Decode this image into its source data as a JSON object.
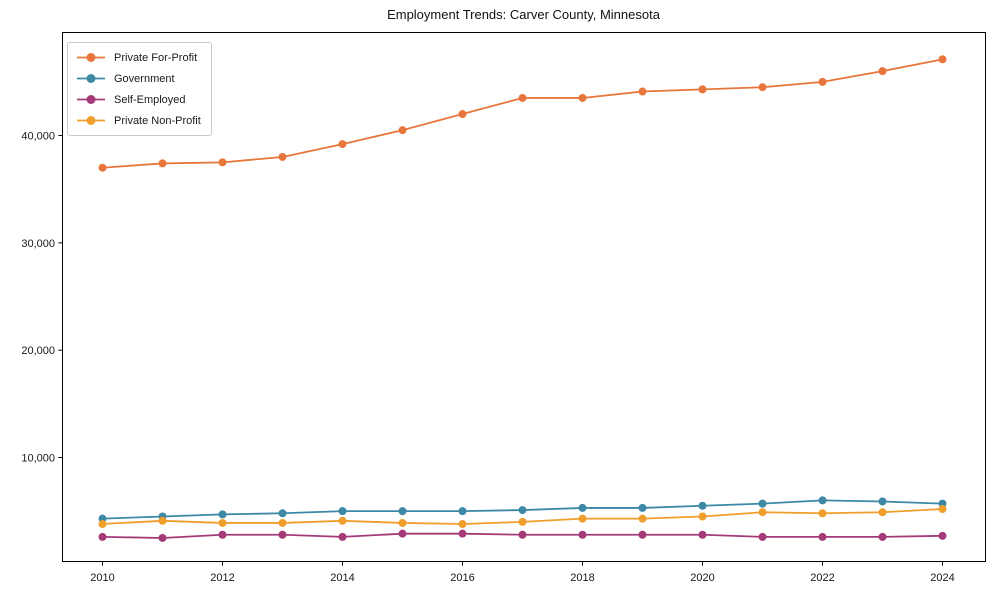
{
  "chart_data": {
    "type": "line",
    "title": "Employment Trends: Carver County, Minnesota",
    "xlabel": "",
    "ylabel": "",
    "x": [
      2010,
      2011,
      2012,
      2013,
      2014,
      2015,
      2016,
      2017,
      2018,
      2019,
      2020,
      2021,
      2022,
      2023,
      2024
    ],
    "series": [
      {
        "name": "Private For-Profit",
        "color": "#e8763c",
        "values": [
          37000,
          37400,
          37500,
          38000,
          39200,
          40500,
          42000,
          43500,
          43500,
          44100,
          44300,
          44500,
          45000,
          46000,
          47100
        ]
      },
      {
        "name": "Government",
        "color": "#3c88a5",
        "values": [
          4300,
          4500,
          4700,
          4800,
          5000,
          5000,
          5000,
          5100,
          5300,
          5300,
          5500,
          5700,
          6000,
          5900,
          5700
        ]
      },
      {
        "name": "Self-Employed",
        "color": "#a43b78",
        "values": [
          2600,
          2500,
          2800,
          2800,
          2600,
          2900,
          2900,
          2800,
          2800,
          2800,
          2800,
          2600,
          2600,
          2600,
          2700
        ]
      },
      {
        "name": "Private Non-Profit",
        "color": "#f09e2b",
        "values": [
          3800,
          4100,
          3900,
          3900,
          4100,
          3900,
          3800,
          4000,
          4300,
          4300,
          4500,
          4900,
          4800,
          4900,
          5200
        ]
      }
    ],
    "yticks": {
      "values": [
        10000,
        20000,
        30000,
        40000
      ],
      "labels": [
        "10,000",
        "20,000",
        "30,000",
        "40,000"
      ]
    },
    "xticks": {
      "values": [
        2010,
        2012,
        2014,
        2016,
        2018,
        2020,
        2022,
        2024
      ],
      "labels": [
        "2010",
        "2012",
        "2014",
        "2016",
        "2018",
        "2020",
        "2022",
        "2024"
      ]
    },
    "ylim": [
      0,
      49600
    ],
    "xlim": [
      2009.3,
      2024.7
    ],
    "grid": false,
    "marker": "circle",
    "legend_position": "upper-left",
    "axis_color": "#000000",
    "text_color": "#1a1a1a"
  }
}
